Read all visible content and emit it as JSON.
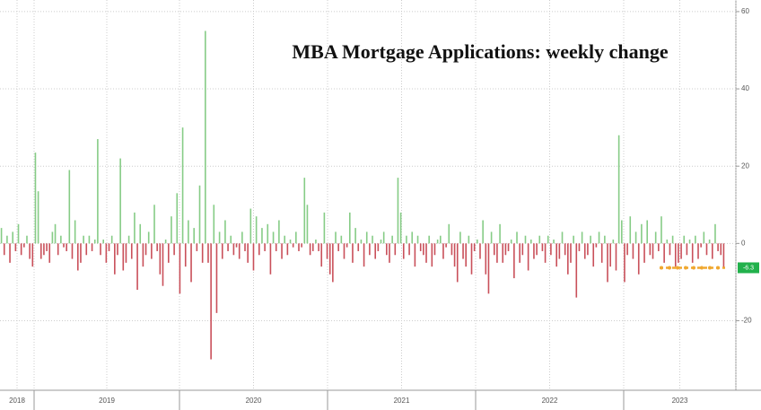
{
  "chart_data": {
    "type": "bar",
    "title": "MBA Mortgage Applications: weekly change",
    "year_labels": [
      "2018",
      "2019",
      "2020",
      "2021",
      "2022",
      "2023"
    ],
    "values": [
      4,
      -3,
      2,
      -5,
      3,
      -2,
      5,
      -3,
      -1,
      2,
      -4,
      -6,
      23.5,
      13.5,
      -4,
      -3,
      -2,
      -5,
      3,
      5,
      -3,
      2,
      -1,
      -2,
      19,
      -4,
      6,
      -7,
      -5,
      2,
      -3,
      2,
      -2,
      1,
      27,
      -3,
      1,
      -5,
      -2,
      2,
      -8,
      -3,
      22,
      -7,
      -5,
      2,
      -4,
      8,
      -12,
      5,
      -6,
      -3,
      3,
      -4,
      10,
      -2,
      -8,
      -11,
      1,
      -5,
      7,
      -3,
      13,
      -13,
      30,
      -6,
      6,
      -10,
      4,
      -2,
      15,
      -5,
      55,
      -5,
      -30,
      10,
      -18,
      3,
      -4,
      6,
      -2,
      2,
      -3,
      -1,
      -4,
      3,
      -2,
      -5,
      9,
      -7,
      7,
      -3,
      4,
      -2,
      5,
      -8,
      3,
      -2,
      6,
      -4,
      2,
      -3,
      1,
      -1,
      3,
      -2,
      -1,
      17,
      10,
      -3,
      -2,
      1,
      -2,
      -6,
      8,
      -4,
      -8,
      -10,
      3,
      -2,
      2,
      -4,
      -1,
      8,
      -5,
      4,
      -2,
      1,
      -6,
      3,
      -3,
      2,
      -4,
      -2,
      1,
      3,
      -3,
      -5,
      2,
      -3,
      17,
      8,
      -4,
      2,
      -3,
      3,
      -6,
      2,
      -2,
      -3,
      -5,
      2,
      -6,
      -3,
      1,
      2,
      -4,
      -1,
      5,
      -3,
      -6,
      -10,
      3,
      -4,
      -6,
      2,
      -8,
      -2,
      1,
      -4,
      6,
      -8,
      -13,
      3,
      -3,
      -5,
      5,
      -5,
      -3,
      -2,
      1,
      -9,
      3,
      -5,
      -3,
      2,
      -7,
      1,
      -4,
      -3,
      2,
      -2,
      -5,
      2,
      -3,
      1,
      -6,
      -4,
      3,
      -3,
      -8,
      -5,
      2,
      -14,
      -2,
      3,
      -4,
      -3,
      2,
      -6,
      -1,
      3,
      -5,
      2,
      -10,
      -6,
      1,
      -7,
      28,
      6,
      -10,
      -3,
      7,
      -4,
      3,
      -8,
      5,
      -5,
      6,
      -3,
      -4,
      3,
      -2,
      7,
      -5,
      1,
      -3,
      2,
      -6,
      -5,
      -4,
      2,
      -3,
      1,
      -5,
      2,
      -4,
      -1,
      3,
      -3,
      1,
      -4,
      5,
      -2,
      -3,
      -6.3
    ],
    "positive_color": "#86cc86",
    "negative_color": "#c9505a",
    "reference_color": "#f0a830",
    "ylim": [
      -38,
      63
    ],
    "yticks": [
      60,
      40,
      20,
      0,
      -20
    ],
    "grid": true
  }
}
